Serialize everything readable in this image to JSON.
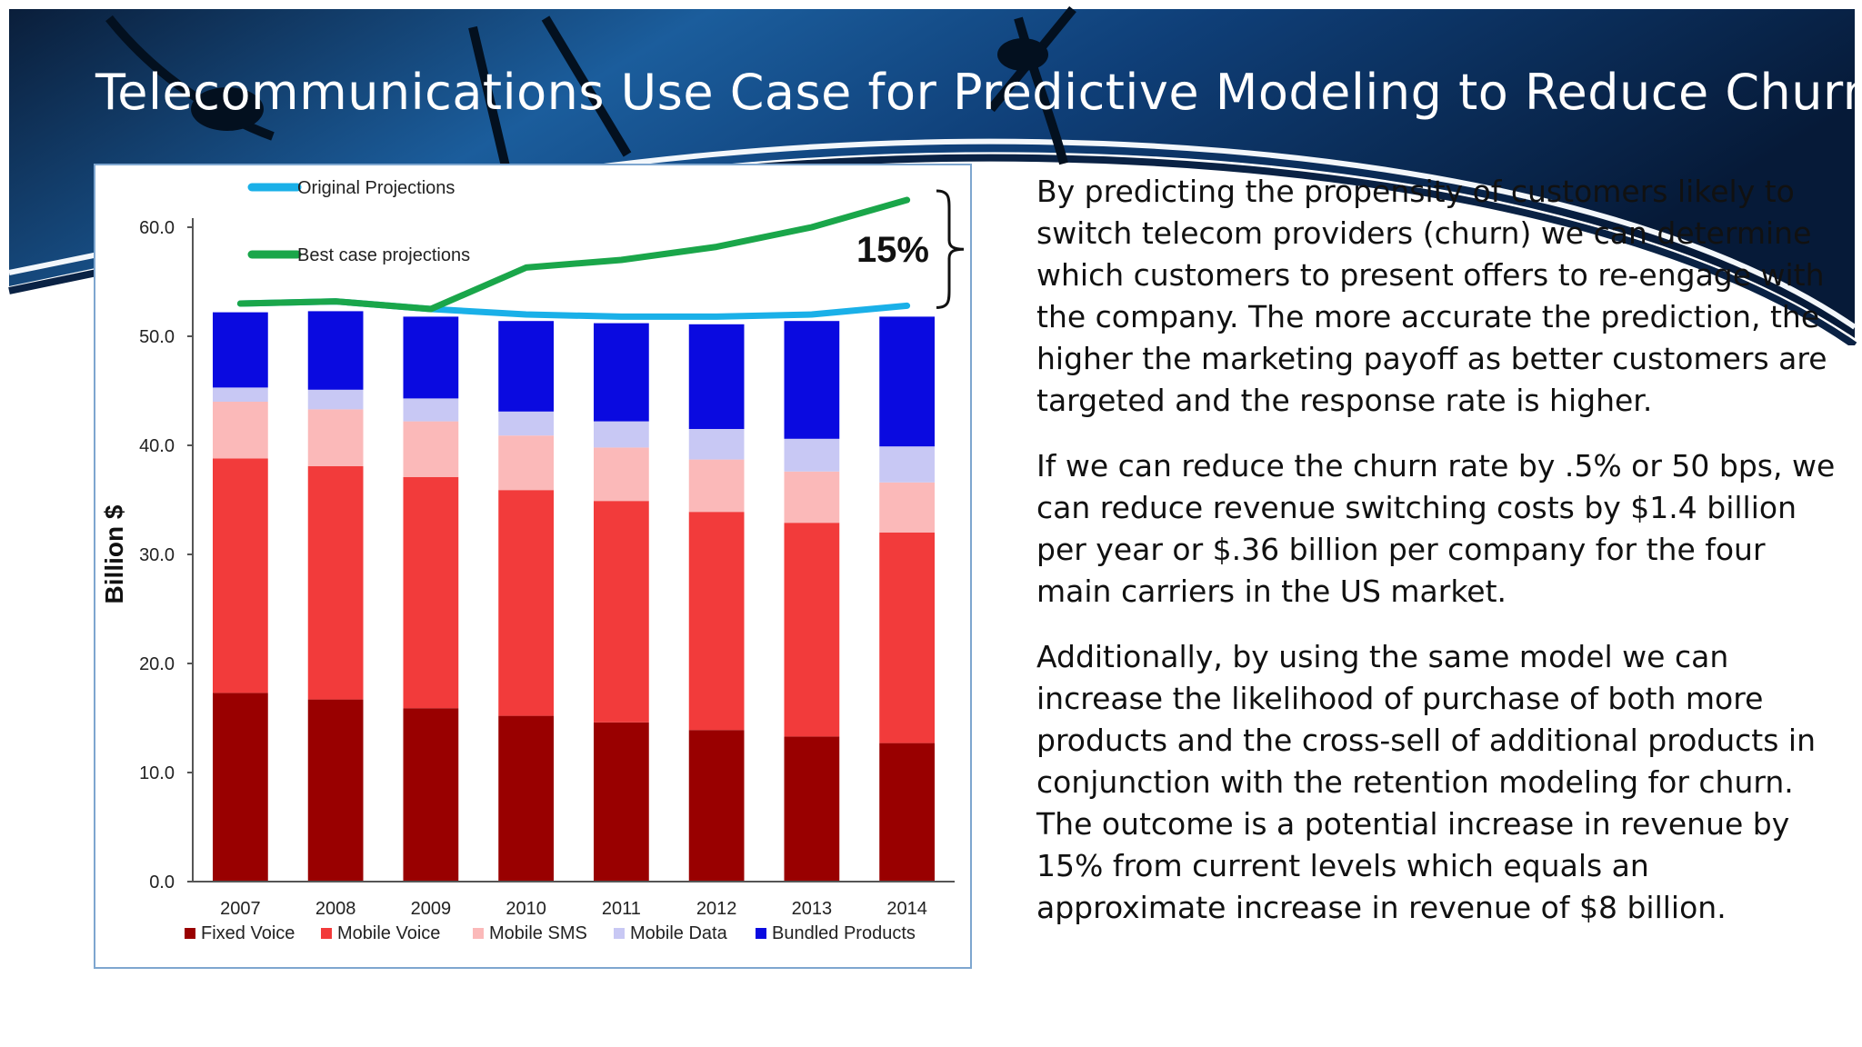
{
  "slide": {
    "title": "Telecommunications Use Case for Predictive Modeling to Reduce Churn",
    "paragraphs": [
      "By predicting the propensity of customers likely to switch telecom providers (churn) we can determine which customers to present offers to re-engage with the company. The more accurate the prediction, the higher the marketing payoff as better customers are targeted and the response rate is higher.",
      "If we can reduce the churn rate by .5% or 50 bps, we can reduce revenue switching costs by $1.4 billion per year or $.36 billion per company for the four main carriers in the US market.",
      "Additionally, by using the same model we can increase the likelihood of purchase of both more products and the cross-sell of additional products in conjunction with the retention modeling for churn. The outcome is a potential increase in revenue by 15% from current levels which equals an approximate increase in revenue of $8 billion."
    ]
  },
  "chart_data": {
    "type": "bar",
    "stacked": true,
    "title": "",
    "xlabel": "",
    "ylabel": "Billion $",
    "ylim": [
      0,
      60
    ],
    "yticks": [
      "0.0",
      "10.0",
      "20.0",
      "30.0",
      "40.0",
      "50.0",
      "60.0"
    ],
    "categories": [
      "2007",
      "2008",
      "2009",
      "2010",
      "2011",
      "2012",
      "2013",
      "2014"
    ],
    "series": [
      {
        "name": "Fixed Voice",
        "color": "#990000",
        "values": [
          17.3,
          16.7,
          15.9,
          15.2,
          14.6,
          13.9,
          13.3,
          12.7
        ]
      },
      {
        "name": "Mobile Voice",
        "color": "#f23b3b",
        "values": [
          21.5,
          21.4,
          21.2,
          20.7,
          20.3,
          20.0,
          19.6,
          19.3
        ]
      },
      {
        "name": "Mobile SMS",
        "color": "#fbb9b9",
        "values": [
          5.2,
          5.2,
          5.1,
          5.0,
          4.9,
          4.8,
          4.7,
          4.6
        ]
      },
      {
        "name": "Mobile Data",
        "color": "#c8c8f4",
        "values": [
          1.3,
          1.8,
          2.1,
          2.2,
          2.4,
          2.8,
          3.0,
          3.3
        ]
      },
      {
        "name": "Bundled Products",
        "color": "#0a0ae0",
        "values": [
          6.9,
          7.2,
          7.5,
          8.3,
          9.0,
          9.6,
          10.8,
          11.9
        ]
      }
    ],
    "lines": [
      {
        "name": "Original Projections",
        "color": "#1ab0e8",
        "values": [
          53.0,
          53.2,
          52.5,
          52.0,
          51.8,
          51.8,
          52.0,
          52.8
        ]
      },
      {
        "name": "Best case projections",
        "color": "#1aa64a",
        "values": [
          53.0,
          53.2,
          52.5,
          56.3,
          57.0,
          58.2,
          60.0,
          62.5
        ]
      }
    ],
    "annotation": "15%",
    "legend": "bottom"
  }
}
